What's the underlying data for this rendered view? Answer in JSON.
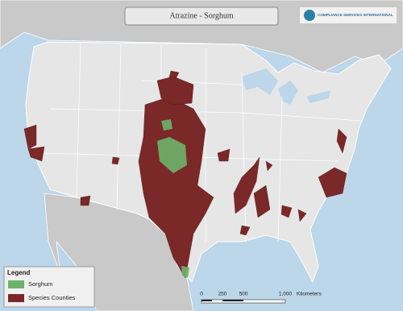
{
  "header": {
    "title": "Atrazine - Sorghum",
    "logo": "COMPLIANCE SERVICES INTERNATIONAL"
  },
  "legend": {
    "title": "Legend",
    "items": [
      "Sorghum",
      "Species Counties"
    ]
  },
  "scale_bar": {
    "labels": [
      "0",
      "250",
      "500",
      "1,000"
    ],
    "unit": "Kilometers"
  }
}
